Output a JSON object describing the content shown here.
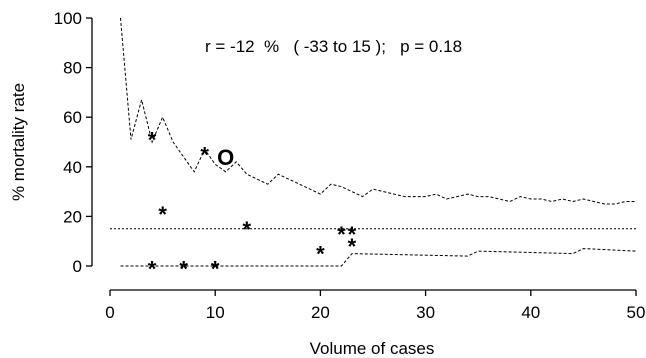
{
  "chart_data": {
    "type": "scatter",
    "title": "",
    "annotation": "r = -12  %   ( -33 to 15 );   p = 0.18",
    "xlabel": "Volume of cases",
    "ylabel": "% mortality rate",
    "xlim": [
      0,
      50
    ],
    "ylim": [
      0,
      100
    ],
    "x_ticks": [
      "0",
      "10",
      "20",
      "30",
      "40",
      "50"
    ],
    "y_ticks": [
      "0",
      "20",
      "40",
      "60",
      "80",
      "100"
    ],
    "grid": false,
    "points": [
      {
        "x": 4,
        "y": 53,
        "marker": "*"
      },
      {
        "x": 9,
        "y": 47,
        "marker": "*"
      },
      {
        "x": 11,
        "y": 44,
        "marker": "o"
      },
      {
        "x": 5,
        "y": 23,
        "marker": "*"
      },
      {
        "x": 13,
        "y": 17,
        "marker": "*"
      },
      {
        "x": 22,
        "y": 15,
        "marker": "*"
      },
      {
        "x": 23,
        "y": 15,
        "marker": "*"
      },
      {
        "x": 23,
        "y": 10,
        "marker": "*"
      },
      {
        "x": 20,
        "y": 7,
        "marker": "*"
      },
      {
        "x": 4,
        "y": 1,
        "marker": "*"
      },
      {
        "x": 7,
        "y": 1,
        "marker": "*"
      },
      {
        "x": 10,
        "y": 1,
        "marker": "*"
      }
    ],
    "reference_line": {
      "y": 15,
      "x_from": 0,
      "x_to": 50,
      "style": "dotted"
    },
    "upper_limit": {
      "style": "dotted",
      "x": [
        1,
        2,
        3,
        4,
        5,
        6,
        7,
        8,
        9,
        10,
        11,
        12,
        13,
        14,
        15,
        16,
        17,
        18,
        19,
        20,
        21,
        22,
        23,
        24,
        25,
        26,
        27,
        28,
        29,
        30,
        31,
        32,
        33,
        34,
        35,
        36,
        37,
        38,
        39,
        40,
        41,
        42,
        43,
        44,
        45,
        46,
        47,
        48,
        49,
        50
      ],
      "y": [
        100,
        51,
        67,
        50,
        60,
        50,
        44,
        38,
        47,
        41,
        38,
        42,
        37,
        35,
        33,
        37,
        35,
        33,
        31,
        29,
        33,
        32,
        30,
        28,
        31,
        30,
        29,
        28,
        28,
        28,
        29,
        27,
        28,
        29,
        28,
        28,
        27,
        26,
        28,
        27,
        27,
        26,
        27,
        26,
        27,
        26,
        25,
        25,
        26,
        26
      ]
    },
    "lower_limit": {
      "style": "dotted",
      "x": [
        1,
        22,
        23,
        34,
        35,
        44,
        45,
        50
      ],
      "y": [
        0,
        0,
        5,
        4,
        6,
        5,
        7,
        6
      ]
    }
  }
}
